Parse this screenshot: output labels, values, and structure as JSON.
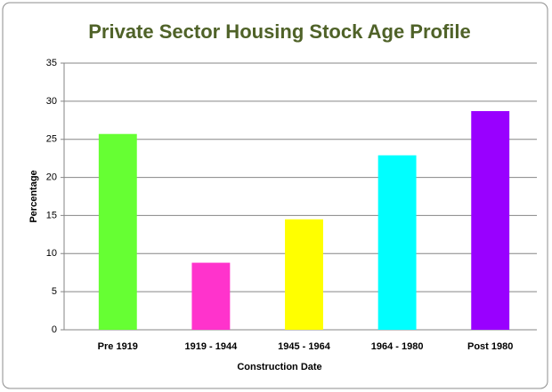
{
  "chart_data": {
    "type": "bar",
    "title": "Private Sector Housing Stock Age Profile",
    "x_label": "Construction Date",
    "y_label": "Percentage",
    "categories": [
      "Pre 1919",
      "1919 - 1944",
      "1945 - 1964",
      "1964 - 1980",
      "Post 1980"
    ],
    "values": [
      25.7,
      8.8,
      14.5,
      22.9,
      28.7
    ],
    "colors": [
      "#66ff33",
      "#ff33cc",
      "#ffff00",
      "#00ffff",
      "#9900ff"
    ],
    "ylim": [
      0,
      35
    ],
    "yticks": [
      0,
      5,
      10,
      15,
      20,
      25,
      30,
      35
    ],
    "grid": true
  }
}
